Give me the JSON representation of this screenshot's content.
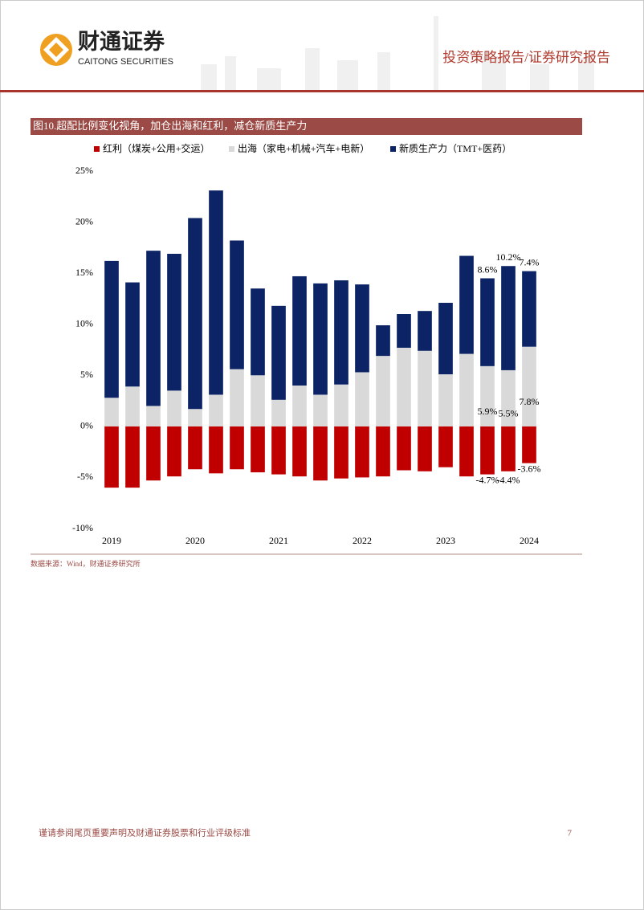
{
  "header": {
    "company_cn": "财通证券",
    "company_en": "CAITONG SECURITIES",
    "report_type": "投资策略报告/证券研究报告"
  },
  "figure_title": "图10.超配比例变化视角，加仓出海和红利，减仓新质生产力",
  "chart_data": {
    "type": "stacked-bar",
    "categories": [
      "2019",
      null,
      null,
      null,
      "2020",
      null,
      null,
      null,
      "2021",
      null,
      null,
      null,
      "2022",
      null,
      null,
      null,
      "2023",
      null,
      null,
      null,
      "2024"
    ],
    "series": [
      {
        "name": "红利（煤炭+公用+交运）",
        "color": "#c00000",
        "values": [
          -6.0,
          -6.0,
          -5.3,
          -4.9,
          -4.2,
          -4.6,
          -4.2,
          -4.5,
          -4.7,
          -4.9,
          -5.3,
          -5.1,
          -5.0,
          -4.9,
          -4.3,
          -4.4,
          -4.0,
          -4.9,
          -4.7,
          -4.4,
          -3.6
        ],
        "value_labels": [
          null,
          null,
          null,
          null,
          null,
          null,
          null,
          null,
          null,
          null,
          null,
          null,
          null,
          null,
          null,
          null,
          null,
          null,
          "-4.7%",
          "-4.4%",
          "-3.6%"
        ]
      },
      {
        "name": "出海（家电+机械+汽车+电新）",
        "color": "#d9d9d9",
        "values": [
          2.8,
          3.9,
          2.0,
          3.5,
          1.7,
          3.1,
          5.6,
          5.0,
          2.6,
          4.0,
          3.1,
          4.1,
          5.3,
          6.9,
          7.7,
          7.4,
          5.1,
          7.1,
          5.9,
          5.5,
          7.8
        ],
        "value_labels": [
          null,
          null,
          null,
          null,
          null,
          null,
          null,
          null,
          null,
          null,
          null,
          null,
          null,
          null,
          null,
          null,
          null,
          null,
          "5.9%",
          "5.5%",
          "7.8%"
        ]
      },
      {
        "name": "新质生产力（TMT+医药）",
        "color": "#0c2466",
        "values": [
          13.4,
          10.2,
          15.2,
          13.4,
          18.7,
          20.0,
          12.6,
          8.5,
          9.2,
          10.7,
          10.9,
          10.2,
          8.6,
          3.0,
          3.3,
          3.9,
          7.0,
          9.6,
          8.6,
          10.2,
          7.4
        ],
        "value_labels": [
          null,
          null,
          null,
          null,
          null,
          null,
          null,
          null,
          null,
          null,
          null,
          null,
          null,
          null,
          null,
          null,
          null,
          null,
          "8.6%",
          "10.2%",
          "7.4%"
        ]
      }
    ],
    "ylim": [
      -10,
      25
    ],
    "yticks": [
      {
        "value": -10,
        "label": "-10%"
      },
      {
        "value": -5,
        "label": "-5%"
      },
      {
        "value": 0,
        "label": "0%"
      },
      {
        "value": 5,
        "label": "5%"
      },
      {
        "value": 10,
        "label": "10%"
      },
      {
        "value": 15,
        "label": "15%"
      },
      {
        "value": 20,
        "label": "20%"
      },
      {
        "value": 25,
        "label": "25%"
      }
    ],
    "grid": false,
    "legend": "top"
  },
  "source": "数据来源：Wind，财通证券研究所",
  "footer": {
    "disclaimer": "谨请参阅尾页重要声明及财通证券股票和行业评级标准",
    "page_number": "7"
  }
}
